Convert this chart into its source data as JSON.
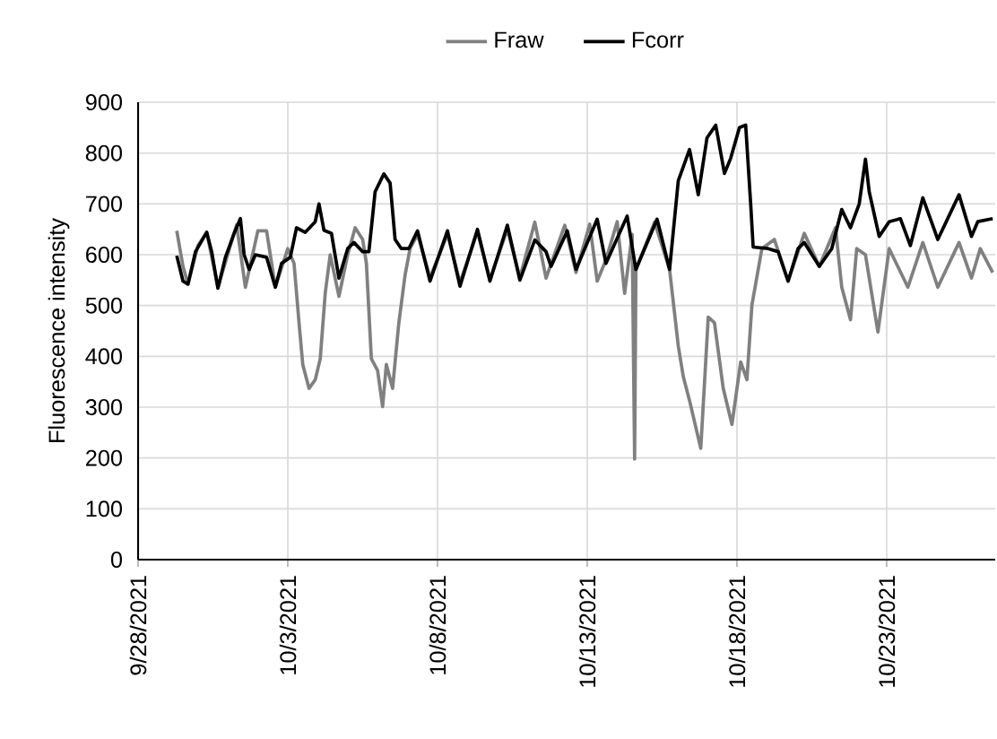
{
  "chart_data": {
    "type": "line",
    "ylabel": "Fluorescence intensity",
    "xlim": [
      "2021-09-28",
      "2021-10-26T15:00"
    ],
    "xticks": [
      {
        "value": "2021-09-28",
        "label": "9/28/2021"
      },
      {
        "value": "2021-10-03",
        "label": "10/3/2021"
      },
      {
        "value": "2021-10-08",
        "label": "10/8/2021"
      },
      {
        "value": "2021-10-13",
        "label": "10/13/2021"
      },
      {
        "value": "2021-10-18",
        "label": "10/18/2021"
      },
      {
        "value": "2021-10-23",
        "label": "10/23/2021"
      }
    ],
    "ylim": [
      0,
      900
    ],
    "yticks": [
      0,
      100,
      200,
      300,
      400,
      500,
      600,
      700,
      800,
      900
    ],
    "grid": true,
    "legend": "top",
    "marker": "none",
    "line_style": "solid",
    "series": [
      {
        "name": "Fraw",
        "color": "#808080",
        "x": [
          "2021-09-29T07:00",
          "2021-09-29T12:00",
          "2021-09-29T16:00",
          "2021-09-30T00:00",
          "2021-09-30T07:00",
          "2021-09-30T16:00",
          "2021-10-01T07:00",
          "2021-10-01T14:00",
          "2021-10-02T00:00",
          "2021-10-02T07:00",
          "2021-10-02T14:00",
          "2021-10-03T00:00",
          "2021-10-03T05:00",
          "2021-10-03T09:00",
          "2021-10-03T12:00",
          "2021-10-03T17:00",
          "2021-10-03T22:00",
          "2021-10-04T02:00",
          "2021-10-04T06:00",
          "2021-10-04T10:00",
          "2021-10-04T17:00",
          "2021-10-05T00:00",
          "2021-10-05T06:00",
          "2021-10-05T12:00",
          "2021-10-05T15:00",
          "2021-10-05T19:00",
          "2021-10-06T00:00",
          "2021-10-06T04:00",
          "2021-10-06T07:00",
          "2021-10-06T12:00",
          "2021-10-06T17:00",
          "2021-10-06T22:00",
          "2021-10-07T02:00",
          "2021-10-07T08:00",
          "2021-10-07T18:00",
          "2021-10-08T08:00",
          "2021-10-08T18:00",
          "2021-10-09T08:00",
          "2021-10-09T18:00",
          "2021-10-10T08:00",
          "2021-10-10T18:00",
          "2021-10-11T06:00",
          "2021-10-11T15:00",
          "2021-10-12T06:00",
          "2021-10-12T15:00",
          "2021-10-13T02:00",
          "2021-10-13T08:00",
          "2021-10-13T15:00",
          "2021-10-14T00:00",
          "2021-10-14T06:00",
          "2021-10-14T12:00",
          "2021-10-14T14:00",
          "2021-10-14T15:00",
          "2021-10-15T06:00",
          "2021-10-15T18:00",
          "2021-10-16T01:00",
          "2021-10-16T05:00",
          "2021-10-16T10:00",
          "2021-10-16T19:00",
          "2021-10-17T01:00",
          "2021-10-17T06:00",
          "2021-10-17T13:00",
          "2021-10-17T20:00",
          "2021-10-18T03:00",
          "2021-10-18T08:00",
          "2021-10-18T12:00",
          "2021-10-18T20:00",
          "2021-10-19T06:00",
          "2021-10-19T17:00",
          "2021-10-20T06:00",
          "2021-10-20T18:00",
          "2021-10-21T07:00",
          "2021-10-21T12:00",
          "2021-10-21T19:00",
          "2021-10-22T00:00",
          "2021-10-22T07:00",
          "2021-10-22T17:00",
          "2021-10-23T02:00",
          "2021-10-23T17:00",
          "2021-10-24T05:00",
          "2021-10-24T17:00",
          "2021-10-25T10:00",
          "2021-10-25T20:00",
          "2021-10-26T03:00",
          "2021-10-26T13:00"
        ],
        "values": [
          647,
          577,
          542,
          618,
          644,
          536,
          659,
          536,
          647,
          647,
          536,
          612,
          583,
          466,
          384,
          337,
          354,
          395,
          524,
          600,
          518,
          600,
          653,
          630,
          583,
          395,
          372,
          301,
          384,
          337,
          466,
          560,
          612,
          640,
          555,
          640,
          545,
          645,
          552,
          650,
          555,
          664,
          554,
          658,
          565,
          660,
          548,
          590,
          665,
          524,
          640,
          198,
          571,
          664,
          571,
          420,
          360,
          313,
          219,
          477,
          466,
          337,
          266,
          389,
          354,
          501,
          612,
          630,
          548,
          642,
          577,
          653,
          536,
          472,
          612,
          600,
          448,
          612,
          536,
          624,
          536,
          624,
          554,
          612,
          565
        ]
      },
      {
        "name": "Fcorr",
        "color": "#000000",
        "x": [
          "2021-09-29T07:00",
          "2021-09-29T12:00",
          "2021-09-29T16:00",
          "2021-09-29T22:00",
          "2021-09-30T07:00",
          "2021-09-30T11:00",
          "2021-09-30T16:00",
          "2021-09-30T22:00",
          "2021-10-01T05:00",
          "2021-10-01T10:00",
          "2021-10-01T13:00",
          "2021-10-01T17:00",
          "2021-10-01T22:00",
          "2021-10-02T07:00",
          "2021-10-02T14:00",
          "2021-10-02T19:00",
          "2021-10-03T02:00",
          "2021-10-03T07:00",
          "2021-10-03T14:00",
          "2021-10-03T22:00",
          "2021-10-04T01:00",
          "2021-10-04T05:00",
          "2021-10-04T11:00",
          "2021-10-04T17:00",
          "2021-10-05T00:00",
          "2021-10-05T05:00",
          "2021-10-05T12:00",
          "2021-10-05T17:00",
          "2021-10-05T22:00",
          "2021-10-06T05:00",
          "2021-10-06T10:00",
          "2021-10-06T14:00",
          "2021-10-06T19:00",
          "2021-10-07T01:00",
          "2021-10-07T08:00",
          "2021-10-07T18:00",
          "2021-10-08T08:00",
          "2021-10-08T18:00",
          "2021-10-09T08:00",
          "2021-10-09T18:00",
          "2021-10-10T08:00",
          "2021-10-10T18:00",
          "2021-10-11T06:00",
          "2021-10-11T15:00",
          "2021-10-11T19:00",
          "2021-10-12T08:00",
          "2021-10-12T15:00",
          "2021-10-13T08:00",
          "2021-10-13T15:00",
          "2021-10-14T08:00",
          "2021-10-14T15:00",
          "2021-10-15T08:00",
          "2021-10-15T18:00",
          "2021-10-16T01:00",
          "2021-10-16T10:00",
          "2021-10-16T17:00",
          "2021-10-17T00:00",
          "2021-10-17T07:00",
          "2021-10-17T14:00",
          "2021-10-17T19:00",
          "2021-10-18T02:00",
          "2021-10-18T07:00",
          "2021-10-18T11:00",
          "2021-10-18T13:00",
          "2021-10-19T01:00",
          "2021-10-19T09:00",
          "2021-10-19T17:00",
          "2021-10-20T01:00",
          "2021-10-20T06:00",
          "2021-10-20T18:00",
          "2021-10-21T04:00",
          "2021-10-21T12:00",
          "2021-10-21T19:00",
          "2021-10-22T02:00",
          "2021-10-22T07:00",
          "2021-10-22T10:00",
          "2021-10-22T18:00",
          "2021-10-23T02:00",
          "2021-10-23T11:00",
          "2021-10-23T19:00",
          "2021-10-24T05:00",
          "2021-10-24T17:00",
          "2021-10-25T10:00",
          "2021-10-25T20:00",
          "2021-10-26T01:00",
          "2021-10-26T13:00"
        ],
        "values": [
          598,
          548,
          542,
          606,
          644,
          606,
          534,
          595,
          642,
          671,
          600,
          571,
          600,
          595,
          536,
          583,
          595,
          653,
          644,
          665,
          700,
          648,
          642,
          554,
          612,
          624,
          606,
          606,
          724,
          759,
          741,
          630,
          612,
          612,
          647,
          548,
          647,
          538,
          650,
          548,
          658,
          550,
          629,
          606,
          577,
          647,
          571,
          670,
          583,
          676,
          571,
          670,
          571,
          746,
          807,
          718,
          830,
          855,
          760,
          790,
          850,
          855,
          700,
          615,
          612,
          606,
          548,
          612,
          624,
          577,
          612,
          689,
          653,
          700,
          788,
          724,
          636,
          665,
          671,
          618,
          712,
          630,
          718,
          636,
          665,
          671
        ]
      }
    ]
  }
}
